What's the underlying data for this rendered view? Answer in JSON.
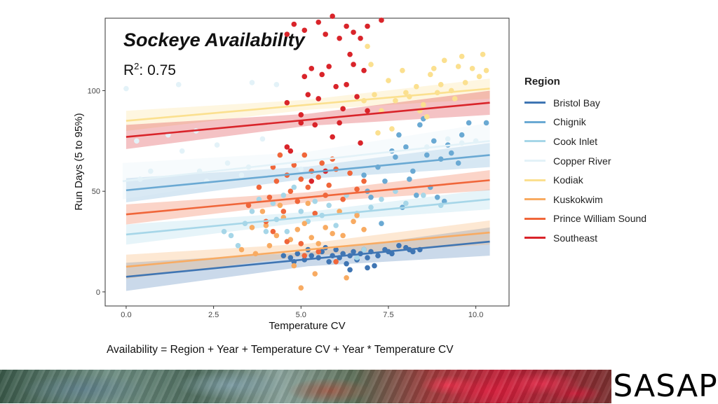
{
  "slide": {
    "title": "Sockeye Availability",
    "r2_label": "R",
    "r2_sup": "2",
    "r2_value": ": 0.75",
    "formula": "Availability = Region + Year + Temperature CV + Year * Temperature CV",
    "logo_text": "SASAP"
  },
  "colors": {
    "Bristol Bay": "#3f75b3",
    "Chignik": "#6aa9d3",
    "Cook Inlet": "#a6d6e8",
    "Copper River": "#e3f2f8",
    "Kodiak": "#fbe08f",
    "Kuskokwim": "#f8ab62",
    "Prince William Sound": "#f0663a",
    "Southeast": "#d9242a"
  },
  "chart_data": {
    "type": "scatter",
    "xlabel": "Temperature CV",
    "ylabel": "Run Days (5 to 95%)",
    "xlim": [
      -0.6,
      10.95
    ],
    "ylim": [
      -7,
      136
    ],
    "x_ticks": [
      0.0,
      2.5,
      5.0,
      7.5,
      10.0
    ],
    "x_tick_labels": [
      "0.0",
      "2.5",
      "5.0",
      "7.5",
      "10.0"
    ],
    "y_ticks": [
      0,
      50,
      100
    ],
    "y_tick_labels": [
      "0",
      "50",
      "100"
    ],
    "grid": false,
    "legend_title": "Region",
    "legend_position": "right",
    "legend": [
      "Bristol Bay",
      "Chignik",
      "Cook Inlet",
      "Copper River",
      "Kodiak",
      "Kuskokwim",
      "Prince William Sound",
      "Southeast"
    ],
    "series": [
      {
        "name": "Bristol Bay",
        "fit_x": [
          0.0,
          10.4
        ],
        "fit_y": [
          7.5,
          25
        ],
        "ci": 3.5,
        "points": [
          [
            4.5,
            18
          ],
          [
            4.7,
            17
          ],
          [
            4.9,
            19
          ],
          [
            5.1,
            16
          ],
          [
            5.3,
            18
          ],
          [
            5.5,
            17
          ],
          [
            5.6,
            20
          ],
          [
            5.8,
            15
          ],
          [
            5.9,
            18
          ],
          [
            6.0,
            21
          ],
          [
            6.1,
            17
          ],
          [
            6.2,
            19
          ],
          [
            6.3,
            14
          ],
          [
            6.4,
            18
          ],
          [
            6.5,
            20
          ],
          [
            6.6,
            16
          ],
          [
            6.7,
            19
          ],
          [
            6.8,
            21
          ],
          [
            6.9,
            17
          ],
          [
            7.0,
            20
          ],
          [
            7.2,
            18
          ],
          [
            7.4,
            21
          ],
          [
            7.6,
            19
          ],
          [
            7.8,
            23
          ],
          [
            8.0,
            22
          ],
          [
            8.2,
            20
          ],
          [
            8.4,
            21
          ],
          [
            7.1,
            13
          ],
          [
            6.4,
            11
          ],
          [
            5.7,
            22
          ],
          [
            5.2,
            21
          ],
          [
            4.8,
            15
          ],
          [
            6.9,
            12
          ],
          [
            7.5,
            20
          ],
          [
            8.1,
            21
          ]
        ]
      },
      {
        "name": "Chignik",
        "fit_x": [
          0.0,
          10.4
        ],
        "fit_y": [
          50.5,
          68
        ],
        "ci": 3,
        "points": [
          [
            6.9,
            50
          ],
          [
            7.2,
            62
          ],
          [
            7.4,
            55
          ],
          [
            7.6,
            70
          ],
          [
            7.8,
            78
          ],
          [
            8.0,
            72
          ],
          [
            8.2,
            60
          ],
          [
            8.4,
            83
          ],
          [
            8.6,
            68
          ],
          [
            8.8,
            75
          ],
          [
            9.0,
            66
          ],
          [
            9.2,
            73
          ],
          [
            9.5,
            64
          ],
          [
            9.8,
            84
          ],
          [
            10.3,
            84
          ],
          [
            8.3,
            48
          ],
          [
            7.9,
            42
          ],
          [
            8.7,
            52
          ],
          [
            9.1,
            45
          ],
          [
            7.3,
            34
          ],
          [
            7.0,
            47
          ],
          [
            8.5,
            86
          ],
          [
            9.6,
            78
          ],
          [
            8.1,
            56
          ],
          [
            7.7,
            67
          ],
          [
            9.3,
            69
          ],
          [
            6.8,
            58
          ],
          [
            8.9,
            47
          ]
        ]
      },
      {
        "name": "Cook Inlet",
        "fit_x": [
          0.0,
          10.4
        ],
        "fit_y": [
          28.5,
          46
        ],
        "ci": 2.5,
        "points": [
          [
            3.0,
            28
          ],
          [
            3.4,
            34
          ],
          [
            3.6,
            40
          ],
          [
            3.8,
            46
          ],
          [
            4.0,
            30
          ],
          [
            4.2,
            44
          ],
          [
            4.3,
            36
          ],
          [
            4.5,
            48
          ],
          [
            4.6,
            30
          ],
          [
            4.8,
            52
          ],
          [
            5.0,
            40
          ],
          [
            5.2,
            35
          ],
          [
            5.4,
            45
          ],
          [
            5.6,
            38
          ],
          [
            5.8,
            43
          ],
          [
            6.0,
            33
          ],
          [
            6.3,
            48
          ],
          [
            6.6,
            39
          ],
          [
            7.0,
            42
          ],
          [
            7.3,
            46
          ],
          [
            7.7,
            50
          ],
          [
            8.0,
            44
          ],
          [
            8.5,
            48
          ],
          [
            9.0,
            43
          ],
          [
            3.2,
            23
          ],
          [
            2.8,
            30
          ],
          [
            6.8,
            21
          ],
          [
            6.6,
            17
          ]
        ]
      },
      {
        "name": "Copper River",
        "fit_x": [
          -0.1,
          10.4
        ],
        "fit_y": [
          55,
          75
        ],
        "ci": 4.5,
        "points": [
          [
            0.0,
            101
          ],
          [
            1.5,
            103
          ],
          [
            0.3,
            75
          ],
          [
            0.7,
            60
          ],
          [
            1.2,
            78
          ],
          [
            1.6,
            70
          ],
          [
            2.0,
            80
          ],
          [
            2.3,
            55
          ],
          [
            2.6,
            73
          ],
          [
            2.9,
            64
          ],
          [
            3.3,
            58
          ],
          [
            3.5,
            62
          ],
          [
            3.9,
            76
          ],
          [
            4.4,
            68
          ],
          [
            5.0,
            61
          ],
          [
            9.6,
            74
          ],
          [
            10.0,
            75
          ],
          [
            8.6,
            72
          ],
          [
            9.2,
            76
          ],
          [
            3.6,
            104
          ],
          [
            4.3,
            103
          ],
          [
            2.1,
            60
          ],
          [
            0.4,
            56
          ]
        ]
      },
      {
        "name": "Kodiak",
        "fit_x": [
          0.0,
          10.4
        ],
        "fit_y": [
          85,
          101
        ],
        "ci": 2.5,
        "points": [
          [
            6.9,
            122
          ],
          [
            7.1,
            98
          ],
          [
            7.3,
            90
          ],
          [
            7.5,
            105
          ],
          [
            7.7,
            95
          ],
          [
            7.9,
            110
          ],
          [
            8.1,
            97
          ],
          [
            8.3,
            102
          ],
          [
            8.5,
            93
          ],
          [
            8.7,
            108
          ],
          [
            8.9,
            99
          ],
          [
            9.1,
            115
          ],
          [
            9.3,
            100
          ],
          [
            9.5,
            112
          ],
          [
            9.7,
            104
          ],
          [
            9.9,
            111
          ],
          [
            10.1,
            107
          ],
          [
            10.3,
            110
          ],
          [
            7.2,
            79
          ],
          [
            8.6,
            87
          ],
          [
            8.4,
            90
          ],
          [
            9.4,
            96
          ],
          [
            7.6,
            81
          ],
          [
            7.0,
            113
          ],
          [
            8.0,
            99
          ],
          [
            9.0,
            103
          ],
          [
            6.8,
            95
          ],
          [
            9.6,
            117
          ],
          [
            10.2,
            118
          ],
          [
            8.8,
            111
          ]
        ]
      },
      {
        "name": "Kuskokwim",
        "fit_x": [
          0.0,
          10.4
        ],
        "fit_y": [
          12.5,
          29.5
        ],
        "ci": 3,
        "points": [
          [
            3.3,
            21
          ],
          [
            3.6,
            32
          ],
          [
            3.9,
            40
          ],
          [
            4.1,
            23
          ],
          [
            4.3,
            28
          ],
          [
            4.5,
            37
          ],
          [
            4.7,
            26
          ],
          [
            4.9,
            31
          ],
          [
            5.1,
            34
          ],
          [
            5.3,
            27
          ],
          [
            5.5,
            24
          ],
          [
            5.7,
            32
          ],
          [
            5.9,
            29
          ],
          [
            6.2,
            28
          ],
          [
            6.5,
            35
          ],
          [
            6.8,
            31
          ],
          [
            5.0,
            2
          ],
          [
            5.4,
            9
          ],
          [
            6.3,
            7
          ],
          [
            4.8,
            13
          ],
          [
            4.4,
            43
          ],
          [
            5.2,
            44
          ],
          [
            6.1,
            40
          ],
          [
            6.6,
            38
          ],
          [
            3.7,
            19
          ],
          [
            4.0,
            33
          ]
        ]
      },
      {
        "name": "Prince William Sound",
        "fit_x": [
          0.0,
          10.4
        ],
        "fit_y": [
          38.5,
          55.5
        ],
        "ci": 2.5,
        "points": [
          [
            3.5,
            43
          ],
          [
            3.8,
            52
          ],
          [
            4.0,
            35
          ],
          [
            4.1,
            47
          ],
          [
            4.2,
            62
          ],
          [
            4.3,
            55
          ],
          [
            4.4,
            68
          ],
          [
            4.5,
            40
          ],
          [
            4.6,
            58
          ],
          [
            4.7,
            50
          ],
          [
            4.8,
            63
          ],
          [
            4.9,
            45
          ],
          [
            5.0,
            56
          ],
          [
            5.1,
            68
          ],
          [
            5.2,
            52
          ],
          [
            5.3,
            60
          ],
          [
            5.4,
            39
          ],
          [
            5.5,
            57
          ],
          [
            5.6,
            64
          ],
          [
            5.7,
            48
          ],
          [
            5.8,
            53
          ],
          [
            6.0,
            61
          ],
          [
            6.2,
            46
          ],
          [
            6.4,
            59
          ],
          [
            6.6,
            51
          ],
          [
            6.8,
            55
          ],
          [
            5.9,
            66
          ],
          [
            4.2,
            30
          ],
          [
            4.6,
            25
          ],
          [
            5.0,
            24
          ],
          [
            5.5,
            20
          ],
          [
            6.0,
            15
          ],
          [
            5.1,
            18
          ]
        ]
      },
      {
        "name": "Southeast",
        "fit_x": [
          0.0,
          10.4
        ],
        "fit_y": [
          77,
          94
        ],
        "ci": 3,
        "points": [
          [
            4.6,
            128
          ],
          [
            4.8,
            133
          ],
          [
            5.1,
            130
          ],
          [
            5.3,
            111
          ],
          [
            5.5,
            134
          ],
          [
            5.7,
            128
          ],
          [
            5.9,
            137
          ],
          [
            6.1,
            126
          ],
          [
            6.3,
            132
          ],
          [
            6.5,
            129
          ],
          [
            6.7,
            126
          ],
          [
            6.9,
            132
          ],
          [
            7.3,
            135
          ],
          [
            4.6,
            94
          ],
          [
            4.7,
            70
          ],
          [
            5.0,
            88
          ],
          [
            5.2,
            98
          ],
          [
            5.4,
            83
          ],
          [
            5.6,
            108
          ],
          [
            5.8,
            112
          ],
          [
            6.0,
            102
          ],
          [
            6.2,
            91
          ],
          [
            6.4,
            118
          ],
          [
            6.6,
            97
          ],
          [
            6.8,
            110
          ],
          [
            5.1,
            107
          ],
          [
            5.9,
            77
          ],
          [
            6.5,
            113
          ],
          [
            4.6,
            72
          ],
          [
            5.3,
            55
          ],
          [
            5.7,
            60
          ],
          [
            5.5,
            96
          ],
          [
            6.1,
            84
          ],
          [
            6.3,
            103
          ],
          [
            6.9,
            90
          ],
          [
            5.0,
            84
          ],
          [
            6.7,
            74
          ]
        ]
      }
    ]
  }
}
